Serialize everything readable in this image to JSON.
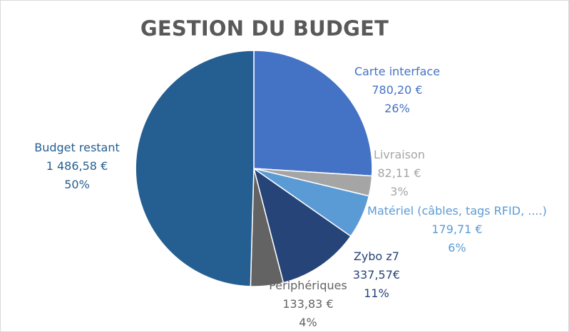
{
  "chart_data": {
    "type": "pie",
    "title": "GESTION DU BUDGET",
    "slices": [
      {
        "name": "Carte interface",
        "value_label": "780,20 €",
        "percent_label": "26%",
        "value": 780.2,
        "color": "#4472c4"
      },
      {
        "name": "Livraison",
        "value_label": "82,11 €",
        "percent_label": "3%",
        "value": 82.11,
        "color": "#a5a5a5"
      },
      {
        "name": "Matériel (câbles, tags RFID, ....)",
        "value_label": "179,71 €",
        "percent_label": "6%",
        "value": 179.71,
        "color": "#5b9bd5"
      },
      {
        "name": "Zybo z7",
        "value_label": "337,57€",
        "percent_label": "11%",
        "value": 337.57,
        "color": "#264478"
      },
      {
        "name": "Périphériques",
        "value_label": "133,83 €",
        "percent_label": "4%",
        "value": 133.83,
        "color": "#636363"
      },
      {
        "name": "Budget restant",
        "value_label": "1 486,58 €",
        "percent_label": "50%",
        "value": 1486.58,
        "color": "#255e91"
      }
    ],
    "label_colors": [
      "#4472c4",
      "#a5a5a5",
      "#5b9bd5",
      "#264478",
      "#636363",
      "#255e91"
    ]
  }
}
